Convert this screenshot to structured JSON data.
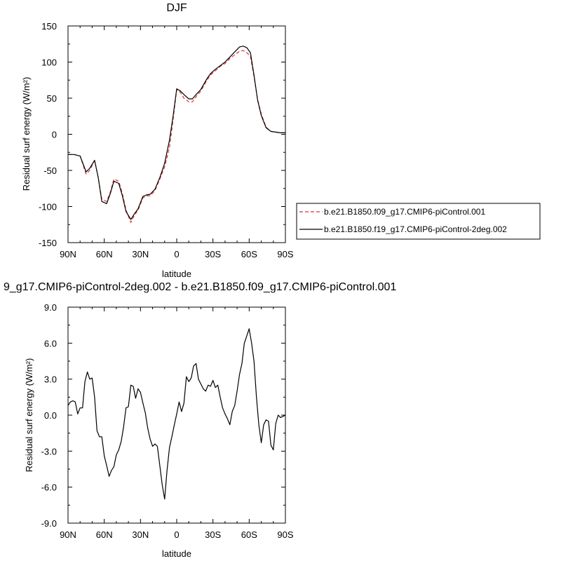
{
  "chart_data": [
    {
      "type": "line",
      "title": "DJF",
      "xlabel": "latitude",
      "ylabel": "Residual surf energy (W/m²)",
      "xlim": [
        -90,
        90
      ],
      "ylim": [
        -150,
        150
      ],
      "xticks": [
        -90,
        -60,
        -30,
        0,
        30,
        60,
        90
      ],
      "xtick_labels": [
        "90N",
        "60N",
        "30N",
        "0",
        "30S",
        "60S",
        "90S"
      ],
      "yticks": [
        -150,
        -100,
        -50,
        0,
        50,
        100,
        150
      ],
      "ytick_labels": [
        "-150",
        "-100",
        "-50",
        "0",
        "50",
        "100",
        "150"
      ],
      "legend_position": "right",
      "series": [
        {
          "name": "b.e21.B1850.f09_g17.CMIP6-piControl.001",
          "color": "#e03030",
          "style": "dashed",
          "points": [
            [
              -90,
              -28
            ],
            [
              -85,
              -28
            ],
            [
              -80,
              -30
            ],
            [
              -75,
              -55
            ],
            [
              -72,
              -50
            ],
            [
              -68,
              -36
            ],
            [
              -65,
              -60
            ],
            [
              -62,
              -90
            ],
            [
              -58,
              -93
            ],
            [
              -55,
              -80
            ],
            [
              -52,
              -62
            ],
            [
              -48,
              -65
            ],
            [
              -45,
              -82
            ],
            [
              -42,
              -105
            ],
            [
              -38,
              -122
            ],
            [
              -35,
              -112
            ],
            [
              -32,
              -105
            ],
            [
              -28,
              -88
            ],
            [
              -25,
              -85
            ],
            [
              -22,
              -85
            ],
            [
              -18,
              -78
            ],
            [
              -14,
              -62
            ],
            [
              -10,
              -45
            ],
            [
              -6,
              -18
            ],
            [
              -3,
              20
            ],
            [
              0,
              62
            ],
            [
              3,
              58
            ],
            [
              6,
              50
            ],
            [
              10,
              45
            ],
            [
              13,
              45
            ],
            [
              16,
              52
            ],
            [
              20,
              60
            ],
            [
              25,
              75
            ],
            [
              28,
              82
            ],
            [
              32,
              88
            ],
            [
              36,
              94
            ],
            [
              40,
              98
            ],
            [
              44,
              105
            ],
            [
              48,
              110
            ],
            [
              52,
              115
            ],
            [
              55,
              116
            ],
            [
              58,
              113
            ],
            [
              61,
              108
            ],
            [
              64,
              80
            ],
            [
              67,
              48
            ],
            [
              70,
              28
            ],
            [
              74,
              10
            ],
            [
              78,
              4
            ],
            [
              82,
              3
            ],
            [
              86,
              2
            ],
            [
              90,
              2
            ]
          ]
        },
        {
          "name": "b.e21.B1850.f19_g17.CMIP6-piControl-2deg.002",
          "color": "#000000",
          "style": "solid",
          "points": [
            [
              -90,
              -28
            ],
            [
              -85,
              -28
            ],
            [
              -80,
              -30
            ],
            [
              -75,
              -52
            ],
            [
              -72,
              -47
            ],
            [
              -68,
              -36
            ],
            [
              -65,
              -60
            ],
            [
              -62,
              -93
            ],
            [
              -58,
              -96
            ],
            [
              -55,
              -82
            ],
            [
              -52,
              -65
            ],
            [
              -48,
              -68
            ],
            [
              -45,
              -85
            ],
            [
              -42,
              -107
            ],
            [
              -38,
              -118
            ],
            [
              -35,
              -110
            ],
            [
              -32,
              -103
            ],
            [
              -28,
              -86
            ],
            [
              -25,
              -84
            ],
            [
              -22,
              -83
            ],
            [
              -18,
              -76
            ],
            [
              -14,
              -60
            ],
            [
              -10,
              -40
            ],
            [
              -6,
              -8
            ],
            [
              -3,
              25
            ],
            [
              0,
              63
            ],
            [
              3,
              60
            ],
            [
              6,
              55
            ],
            [
              10,
              49
            ],
            [
              13,
              49
            ],
            [
              16,
              55
            ],
            [
              20,
              62
            ],
            [
              25,
              77
            ],
            [
              28,
              84
            ],
            [
              32,
              90
            ],
            [
              36,
              95
            ],
            [
              40,
              100
            ],
            [
              44,
              107
            ],
            [
              48,
              114
            ],
            [
              52,
              121
            ],
            [
              55,
              122
            ],
            [
              58,
              120
            ],
            [
              61,
              113
            ],
            [
              64,
              82
            ],
            [
              67,
              47
            ],
            [
              70,
              26
            ],
            [
              74,
              9
            ],
            [
              78,
              4
            ],
            [
              82,
              3
            ],
            [
              86,
              2
            ],
            [
              90,
              2
            ]
          ]
        }
      ]
    },
    {
      "type": "line",
      "title": "9_g17.CMIP6-piControl-2deg.002 - b.e21.B1850.f09_g17.CMIP6-piControl.001",
      "xlabel": "latitude",
      "ylabel": "Residual surf energy (W/m²)",
      "xlim": [
        -90,
        90
      ],
      "ylim": [
        -9,
        9
      ],
      "xticks": [
        -90,
        -60,
        -30,
        0,
        30,
        60,
        90
      ],
      "xtick_labels": [
        "90N",
        "60N",
        "30N",
        "0",
        "30S",
        "60S",
        "90S"
      ],
      "yticks": [
        -9,
        -6,
        -3,
        0,
        3,
        6,
        9
      ],
      "ytick_labels": [
        "-9.0",
        "-6.0",
        "-3.0",
        "0.0",
        "3.0",
        "6.0",
        "9.0"
      ],
      "series": [
        {
          "color": "#000000",
          "style": "solid",
          "points": [
            [
              -90,
              0.8
            ],
            [
              -88,
              1.1
            ],
            [
              -86,
              1.2
            ],
            [
              -84,
              1.1
            ],
            [
              -82,
              0.1
            ],
            [
              -80,
              0.6
            ],
            [
              -78,
              0.6
            ],
            [
              -76,
              2.8
            ],
            [
              -74,
              3.6
            ],
            [
              -72,
              3.0
            ],
            [
              -70,
              3.1
            ],
            [
              -68,
              1.5
            ],
            [
              -66,
              -1.3
            ],
            [
              -64,
              -1.8
            ],
            [
              -62,
              -1.8
            ],
            [
              -60,
              -3.4
            ],
            [
              -58,
              -4.2
            ],
            [
              -56,
              -5.1
            ],
            [
              -54,
              -4.6
            ],
            [
              -52,
              -4.3
            ],
            [
              -50,
              -3.3
            ],
            [
              -48,
              -2.9
            ],
            [
              -46,
              -2.2
            ],
            [
              -44,
              -1.0
            ],
            [
              -42,
              0.6
            ],
            [
              -40,
              0.7
            ],
            [
              -38,
              2.5
            ],
            [
              -36,
              2.4
            ],
            [
              -34,
              1.4
            ],
            [
              -32,
              2.2
            ],
            [
              -30,
              1.9
            ],
            [
              -28,
              1.0
            ],
            [
              -26,
              0.2
            ],
            [
              -24,
              -1.1
            ],
            [
              -22,
              -2.0
            ],
            [
              -20,
              -2.6
            ],
            [
              -18,
              -2.4
            ],
            [
              -16,
              -2.6
            ],
            [
              -14,
              -4.2
            ],
            [
              -12,
              -5.8
            ],
            [
              -10,
              -7.0
            ],
            [
              -8,
              -4.6
            ],
            [
              -6,
              -2.7
            ],
            [
              -4,
              -1.8
            ],
            [
              -2,
              -0.8
            ],
            [
              0,
              0.1
            ],
            [
              2,
              1.1
            ],
            [
              4,
              0.3
            ],
            [
              6,
              1.0
            ],
            [
              8,
              3.2
            ],
            [
              10,
              2.8
            ],
            [
              12,
              3.1
            ],
            [
              14,
              4.1
            ],
            [
              16,
              4.3
            ],
            [
              18,
              3.0
            ],
            [
              20,
              2.6
            ],
            [
              22,
              2.2
            ],
            [
              24,
              2.0
            ],
            [
              26,
              2.5
            ],
            [
              28,
              2.4
            ],
            [
              30,
              2.9
            ],
            [
              32,
              2.3
            ],
            [
              34,
              2.5
            ],
            [
              36,
              1.5
            ],
            [
              38,
              0.6
            ],
            [
              40,
              0.1
            ],
            [
              42,
              -0.3
            ],
            [
              44,
              -0.8
            ],
            [
              46,
              0.3
            ],
            [
              48,
              0.8
            ],
            [
              50,
              2.0
            ],
            [
              52,
              3.4
            ],
            [
              54,
              4.3
            ],
            [
              56,
              6.0
            ],
            [
              58,
              6.6
            ],
            [
              60,
              7.2
            ],
            [
              62,
              6.0
            ],
            [
              64,
              4.5
            ],
            [
              66,
              1.5
            ],
            [
              68,
              -0.8
            ],
            [
              70,
              -2.3
            ],
            [
              72,
              -0.8
            ],
            [
              74,
              -0.4
            ],
            [
              76,
              -0.5
            ],
            [
              78,
              -2.5
            ],
            [
              80,
              -2.9
            ],
            [
              82,
              -0.7
            ],
            [
              84,
              0.0
            ],
            [
              86,
              -0.2
            ],
            [
              88,
              -0.1
            ],
            [
              90,
              0.0
            ]
          ]
        }
      ]
    }
  ]
}
